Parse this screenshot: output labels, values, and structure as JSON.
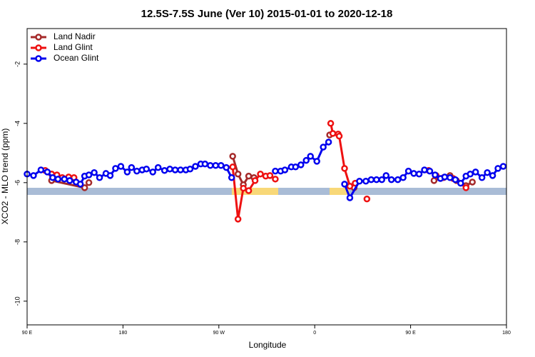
{
  "chart_data": {
    "type": "line",
    "title": "12.5S-7.5S June (Ver 10)   2015-01-01 to 2020-12-18",
    "x_label": "Longitude",
    "y_label": "XCO2 - MLO trend (ppm)",
    "xlim": [
      90,
      540
    ],
    "xticks": [
      {
        "value": 90,
        "label": "90 E"
      },
      180,
      {
        "value": 270,
        "label": "90 W"
      },
      {
        "value": 360,
        "label": "0"
      },
      {
        "value": 450,
        "label": "90 E"
      },
      {
        "value": 540,
        "label": "180"
      }
    ],
    "ylim": [
      -10.8,
      -0.8
    ],
    "yticks": [
      -2,
      -4,
      -6,
      -8,
      -10
    ],
    "legend": "top-left",
    "series": [
      {
        "name": "Land Nadir",
        "color": "#a52a2a",
        "x": [
          113,
          144,
          148,
          null,
          283,
          288,
          293,
          298,
          303,
          null,
          374,
          null,
          397,
          null,
          472,
          487,
          493,
          502,
          508
        ],
        "values": [
          -5.93,
          -6.17,
          -6.0,
          null,
          -5.11,
          -5.71,
          -6.07,
          -5.78,
          -5.83,
          null,
          -4.39,
          null,
          -6.17,
          null,
          -5.93,
          -5.76,
          -5.93,
          -6.1,
          -5.98
        ]
      },
      {
        "name": "Land Glint",
        "color": "#ee1111",
        "x": [
          107,
          113,
          118,
          123,
          129,
          134,
          null,
          283,
          288,
          293,
          298,
          304,
          309,
          314,
          318,
          323,
          null,
          375,
          377,
          382,
          383,
          388,
          393,
          398,
          null,
          409,
          null,
          467,
          474,
          481,
          490,
          502
        ],
        "values": [
          -5.59,
          -5.71,
          -5.74,
          -5.83,
          -5.81,
          -5.83,
          null,
          -5.47,
          -7.23,
          -6.19,
          -6.27,
          -5.93,
          -5.71,
          -5.78,
          -5.76,
          -5.88,
          null,
          -4.0,
          -4.34,
          -4.36,
          -4.43,
          -5.52,
          -6.12,
          -6.02,
          null,
          -6.55,
          null,
          -5.59,
          -5.76,
          -5.83,
          -5.86,
          -6.17
        ]
      },
      {
        "name": "Ocean Glint",
        "color": "#0000ee",
        "x": [
          90,
          96,
          103,
          109,
          114,
          119,
          125,
          130,
          136,
          140,
          144,
          148,
          153,
          158,
          164,
          168,
          173,
          178,
          184,
          188,
          193,
          198,
          202,
          208,
          213,
          219,
          224,
          229,
          234,
          239,
          243,
          248,
          253,
          257,
          262,
          267,
          272,
          277,
          282,
          null,
          323,
          328,
          332,
          338,
          342,
          347,
          352,
          356,
          362,
          368,
          373,
          null,
          388,
          393,
          402,
          408,
          413,
          418,
          423,
          427,
          432,
          438,
          443,
          448,
          453,
          458,
          463,
          468,
          473,
          478,
          482,
          487,
          492,
          497,
          502,
          506,
          511,
          517,
          522,
          527,
          532,
          537
        ],
        "values": [
          -5.71,
          -5.76,
          -5.57,
          -5.64,
          -5.83,
          -5.88,
          -5.88,
          -5.93,
          -5.98,
          -6.05,
          -5.78,
          -5.74,
          -5.66,
          -5.83,
          -5.69,
          -5.76,
          -5.52,
          -5.45,
          -5.64,
          -5.49,
          -5.61,
          -5.57,
          -5.54,
          -5.64,
          -5.49,
          -5.59,
          -5.54,
          -5.57,
          -5.57,
          -5.57,
          -5.54,
          -5.45,
          -5.37,
          -5.37,
          -5.42,
          -5.42,
          -5.42,
          -5.49,
          -5.83,
          null,
          -5.61,
          -5.61,
          -5.57,
          -5.47,
          -5.47,
          -5.4,
          -5.25,
          -5.11,
          -5.28,
          -4.8,
          -4.63,
          null,
          -6.05,
          -6.51,
          -5.95,
          -5.95,
          -5.9,
          -5.9,
          -5.9,
          -5.76,
          -5.9,
          -5.9,
          -5.83,
          -5.61,
          -5.69,
          -5.71,
          -5.57,
          -5.61,
          -5.74,
          -5.86,
          -5.81,
          -5.83,
          -5.9,
          -6.02,
          -5.78,
          -5.71,
          -5.64,
          -5.83,
          -5.66,
          -5.76,
          -5.52,
          -5.45
        ]
      }
    ]
  }
}
